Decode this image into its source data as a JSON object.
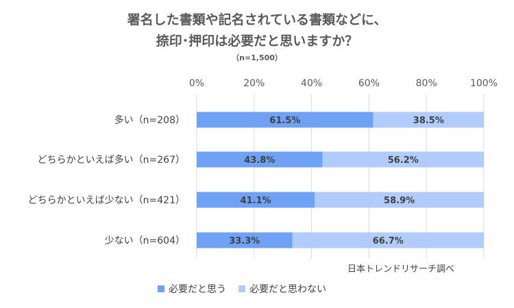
{
  "chart_data": {
    "type": "bar",
    "orientation": "horizontal",
    "stacked": true,
    "title_line1": "署名した書類や記名されている書類などに、",
    "title_line2": "捺印･押印は必要だと思いますか？",
    "subtitle": "（n=1,500）",
    "categories": [
      "多い（n=208）",
      "どちらかといえば多い（n=267）",
      "どちらかといえば少ない（n=421）",
      "少ない（n=604）"
    ],
    "series": [
      {
        "name": "必要だと思う",
        "color": "#6fa1f4",
        "values": [
          61.5,
          43.8,
          41.1,
          33.3
        ],
        "labels": [
          "61.5%",
          "43.8%",
          "41.1%",
          "33.3%"
        ]
      },
      {
        "name": "必要だと思わない",
        "color": "#b1ccfb",
        "values": [
          38.5,
          56.2,
          58.9,
          66.7
        ],
        "labels": [
          "38.5%",
          "56.2%",
          "58.9%",
          "66.7%"
        ]
      }
    ],
    "xlim": [
      0,
      100
    ],
    "x_ticks": [
      0,
      20,
      40,
      60,
      80,
      100
    ],
    "x_tick_labels": [
      "0%",
      "20%",
      "40%",
      "60%",
      "80%",
      "100%"
    ],
    "grid": true,
    "axis_position": "top",
    "legend_position": "bottom",
    "source_note": "日本トレンドリサーチ調べ"
  }
}
